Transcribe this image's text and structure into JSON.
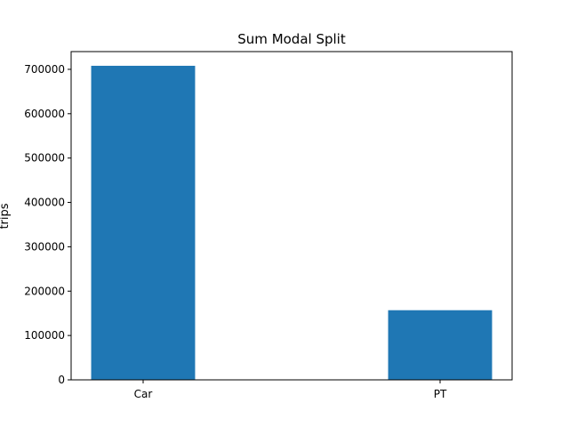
{
  "chart_data": {
    "type": "bar",
    "title": "Sum Modal Split",
    "xlabel": "",
    "ylabel": "trips",
    "categories": [
      "Car",
      "PT"
    ],
    "values": [
      708000,
      157000
    ],
    "ylim": [
      0,
      740000
    ],
    "yticks": [
      0,
      100000,
      200000,
      300000,
      400000,
      500000,
      600000,
      700000
    ],
    "ytick_labels": [
      "0",
      "100000",
      "200000",
      "300000",
      "400000",
      "500000",
      "600000",
      "700000"
    ],
    "bar_color": "#1f77b4",
    "grid": false,
    "legend": "none"
  }
}
